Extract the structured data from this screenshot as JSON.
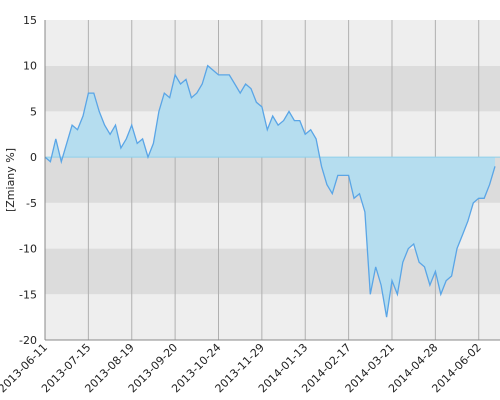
{
  "chart_data": {
    "type": "area",
    "y_label": "[Zmiany %]",
    "categories": [
      "2013-06-11",
      null,
      null,
      null,
      null,
      null,
      null,
      null,
      "2013-07-15",
      null,
      null,
      null,
      null,
      null,
      null,
      null,
      "2013-08-19",
      null,
      null,
      null,
      null,
      null,
      null,
      null,
      "2013-09-20",
      null,
      null,
      null,
      null,
      null,
      null,
      null,
      "2013-10-24",
      null,
      null,
      null,
      null,
      null,
      null,
      null,
      "2013-11-29",
      null,
      null,
      null,
      null,
      null,
      null,
      null,
      "2014-01-13",
      null,
      null,
      null,
      null,
      null,
      null,
      null,
      "2014-02-17",
      null,
      null,
      null,
      null,
      null,
      null,
      null,
      "2014-03-21",
      null,
      null,
      null,
      null,
      null,
      null,
      null,
      "2014-04-28",
      null,
      null,
      null,
      null,
      null,
      null,
      null,
      "2014-06-02",
      null,
      null,
      null
    ],
    "values": [
      0,
      -0.5,
      2,
      -0.5,
      1.5,
      3.5,
      3,
      4.5,
      7,
      7,
      5,
      3.5,
      2.5,
      3.5,
      1,
      2,
      3.5,
      1.5,
      2,
      0,
      1.5,
      5,
      7,
      6.5,
      9,
      8,
      8.5,
      6.5,
      7,
      8,
      10,
      9.5,
      9,
      9,
      9,
      8,
      7,
      8,
      7.5,
      6,
      5.5,
      3,
      4.5,
      3.5,
      4,
      5,
      4,
      4,
      2.5,
      3,
      2,
      -1,
      -3,
      -4,
      -2,
      -2,
      -2,
      -4.5,
      -4,
      -6,
      -15,
      -12,
      -14,
      -17.5,
      -13.5,
      -15,
      -11.5,
      -10,
      -9.5,
      -11.5,
      -12,
      -14,
      -12.5,
      -15,
      -13.5,
      -13,
      -10,
      -8.5,
      -7,
      -5,
      -4.5,
      -4.5,
      -3,
      -1
    ],
    "color": "#5aa5e6",
    "fill": "#b5ddef",
    "ylim": [
      -20,
      15
    ],
    "yticks": [
      -20,
      -15,
      -10,
      -5,
      0,
      5,
      10,
      15
    ],
    "grid": true
  }
}
